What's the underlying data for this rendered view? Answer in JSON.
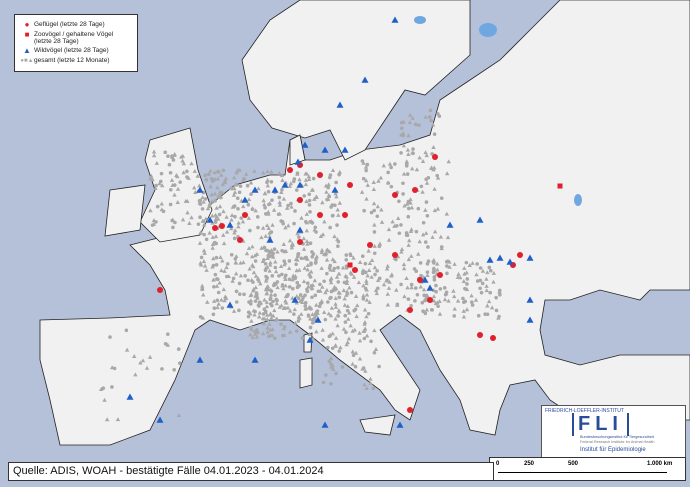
{
  "legend": {
    "items": [
      {
        "label": "Geflügel (letzte 28 Tage)",
        "symbol": "circle",
        "color": "#e0202a"
      },
      {
        "label": "Zoovögel / gehaltene Vögel (letzte 28 Tage)",
        "symbol": "square",
        "color": "#e0202a"
      },
      {
        "label": "Wildvögel (letzte 28 Tage)",
        "symbol": "triangle",
        "color": "#1f5fc8"
      },
      {
        "label": "gesamt (letzte 12 Monate)",
        "symbol": "circle-square-triangle",
        "color": "#a8a8a8"
      }
    ]
  },
  "caption": "Quelle: ADIS, WOAH - bestätigte Fälle 04.01.2023 - 04.01.2024",
  "logo": {
    "top": "FRIEDRICH-LOEFFLER-INSTITUT",
    "acronym": "FLI",
    "line1": "Bundesforschungsinstitut für Tiergesundheit",
    "line2": "Federal Research Institute for Animal Health",
    "line3": "Institut für Epidemiologie"
  },
  "scale": {
    "ticks": [
      "0",
      "250",
      "500",
      "1.000 km"
    ]
  },
  "colors": {
    "sea": "#b5c1d9",
    "land": "#f1f1f1",
    "lake": "#6fa8e0",
    "poultry": "#e0202a",
    "wild": "#1f5fc8",
    "total": "#a8a8a8"
  }
}
